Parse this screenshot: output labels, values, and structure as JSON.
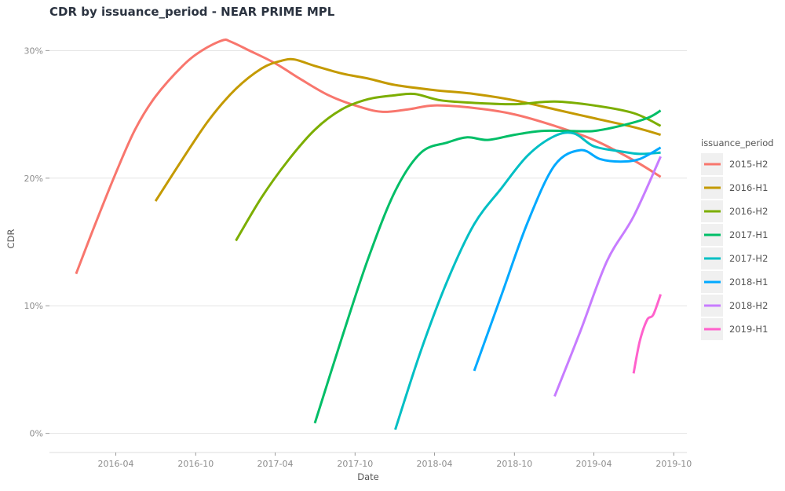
{
  "chart_data": {
    "type": "line",
    "title": "CDR by issuance_period - NEAR PRIME MPL",
    "xlabel": "Date",
    "ylabel": "CDR",
    "x_type": "date",
    "xlim": [
      "2015-11-01",
      "2019-10-31"
    ],
    "ylim": [
      -0.015,
      0.315
    ],
    "x_ticks": [
      {
        "date": "2016-04-01",
        "label": "2016-04"
      },
      {
        "date": "2016-10-01",
        "label": "2016-10"
      },
      {
        "date": "2017-04-01",
        "label": "2017-04"
      },
      {
        "date": "2017-10-01",
        "label": "2017-10"
      },
      {
        "date": "2018-04-01",
        "label": "2018-04"
      },
      {
        "date": "2018-10-01",
        "label": "2018-10"
      },
      {
        "date": "2019-04-01",
        "label": "2019-04"
      },
      {
        "date": "2019-10-01",
        "label": "2019-10"
      }
    ],
    "y_ticks": [
      {
        "value": 0,
        "label": "0%"
      },
      {
        "value": 0.1,
        "label": "10%"
      },
      {
        "value": 0.2,
        "label": "20%"
      },
      {
        "value": 0.3,
        "label": "30%"
      }
    ],
    "grid": true,
    "legend": {
      "title": "issuance_period",
      "position": "right"
    },
    "series": [
      {
        "name": "2015-H2",
        "color": "#F8766D",
        "points": [
          [
            "2016-01-01",
            0.125
          ],
          [
            "2016-02-15",
            0.165
          ],
          [
            "2016-04-01",
            0.204
          ],
          [
            "2016-05-15",
            0.238
          ],
          [
            "2016-07-01",
            0.264
          ],
          [
            "2016-09-01",
            0.288
          ],
          [
            "2016-10-15",
            0.3
          ],
          [
            "2016-12-01",
            0.308
          ],
          [
            "2016-12-20",
            0.307
          ],
          [
            "2017-02-01",
            0.3
          ],
          [
            "2017-04-01",
            0.29
          ],
          [
            "2017-06-01",
            0.277
          ],
          [
            "2017-08-01",
            0.265
          ],
          [
            "2017-10-01",
            0.257
          ],
          [
            "2017-12-01",
            0.252
          ],
          [
            "2018-02-01",
            0.254
          ],
          [
            "2018-04-01",
            0.257
          ],
          [
            "2018-07-01",
            0.255
          ],
          [
            "2018-10-01",
            0.25
          ],
          [
            "2019-01-01",
            0.241
          ],
          [
            "2019-04-01",
            0.23
          ],
          [
            "2019-07-01",
            0.214
          ],
          [
            "2019-09-01",
            0.201
          ]
        ]
      },
      {
        "name": "2016-H1",
        "color": "#C49A00",
        "points": [
          [
            "2016-07-01",
            0.182
          ],
          [
            "2016-09-01",
            0.215
          ],
          [
            "2016-11-01",
            0.246
          ],
          [
            "2017-01-01",
            0.27
          ],
          [
            "2017-03-01",
            0.286
          ],
          [
            "2017-04-15",
            0.292
          ],
          [
            "2017-05-15",
            0.293
          ],
          [
            "2017-07-01",
            0.288
          ],
          [
            "2017-09-01",
            0.282
          ],
          [
            "2017-11-01",
            0.278
          ],
          [
            "2018-01-01",
            0.273
          ],
          [
            "2018-04-01",
            0.269
          ],
          [
            "2018-07-01",
            0.266
          ],
          [
            "2018-10-01",
            0.261
          ],
          [
            "2019-01-01",
            0.254
          ],
          [
            "2019-04-01",
            0.247
          ],
          [
            "2019-07-01",
            0.24
          ],
          [
            "2019-09-01",
            0.234
          ]
        ]
      },
      {
        "name": "2016-H2",
        "color": "#7CAE00",
        "points": [
          [
            "2017-01-01",
            0.151
          ],
          [
            "2017-03-01",
            0.185
          ],
          [
            "2017-05-01",
            0.214
          ],
          [
            "2017-07-01",
            0.238
          ],
          [
            "2017-09-01",
            0.254
          ],
          [
            "2017-11-01",
            0.262
          ],
          [
            "2018-01-01",
            0.265
          ],
          [
            "2018-02-15",
            0.266
          ],
          [
            "2018-04-15",
            0.261
          ],
          [
            "2018-07-01",
            0.259
          ],
          [
            "2018-10-01",
            0.258
          ],
          [
            "2019-01-01",
            0.26
          ],
          [
            "2019-04-01",
            0.257
          ],
          [
            "2019-07-01",
            0.251
          ],
          [
            "2019-09-01",
            0.241
          ]
        ]
      },
      {
        "name": "2017-H1",
        "color": "#00BE67",
        "points": [
          [
            "2017-07-01",
            0.008
          ],
          [
            "2017-09-01",
            0.075
          ],
          [
            "2017-11-01",
            0.138
          ],
          [
            "2018-01-01",
            0.19
          ],
          [
            "2018-03-01",
            0.22
          ],
          [
            "2018-05-01",
            0.228
          ],
          [
            "2018-06-15",
            0.232
          ],
          [
            "2018-08-01",
            0.23
          ],
          [
            "2018-10-01",
            0.234
          ],
          [
            "2018-12-01",
            0.237
          ],
          [
            "2019-02-01",
            0.237
          ],
          [
            "2019-04-01",
            0.237
          ],
          [
            "2019-06-01",
            0.241
          ],
          [
            "2019-08-01",
            0.247
          ],
          [
            "2019-09-01",
            0.253
          ]
        ]
      },
      {
        "name": "2017-H2",
        "color": "#00BFC4",
        "points": [
          [
            "2018-01-01",
            0.003
          ],
          [
            "2018-03-01",
            0.065
          ],
          [
            "2018-05-01",
            0.12
          ],
          [
            "2018-07-01",
            0.164
          ],
          [
            "2018-09-01",
            0.192
          ],
          [
            "2018-11-01",
            0.218
          ],
          [
            "2019-01-01",
            0.233
          ],
          [
            "2019-02-15",
            0.235
          ],
          [
            "2019-04-01",
            0.225
          ],
          [
            "2019-06-01",
            0.221
          ],
          [
            "2019-07-15",
            0.219
          ],
          [
            "2019-09-01",
            0.22
          ]
        ]
      },
      {
        "name": "2018-H1",
        "color": "#00A9FF",
        "points": [
          [
            "2018-07-01",
            0.049
          ],
          [
            "2018-09-01",
            0.108
          ],
          [
            "2018-11-01",
            0.166
          ],
          [
            "2019-01-01",
            0.21
          ],
          [
            "2019-03-01",
            0.222
          ],
          [
            "2019-04-15",
            0.215
          ],
          [
            "2019-06-01",
            0.213
          ],
          [
            "2019-07-15",
            0.215
          ],
          [
            "2019-09-01",
            0.224
          ]
        ]
      },
      {
        "name": "2018-H2",
        "color": "#C77CFF",
        "points": [
          [
            "2019-01-01",
            0.029
          ],
          [
            "2019-03-01",
            0.08
          ],
          [
            "2019-05-01",
            0.135
          ],
          [
            "2019-07-01",
            0.17
          ],
          [
            "2019-09-01",
            0.217
          ]
        ]
      },
      {
        "name": "2019-H1",
        "color": "#FF61CC",
        "points": [
          [
            "2019-07-01",
            0.047
          ],
          [
            "2019-07-15",
            0.072
          ],
          [
            "2019-08-01",
            0.089
          ],
          [
            "2019-08-15",
            0.093
          ],
          [
            "2019-09-01",
            0.109
          ]
        ]
      }
    ]
  }
}
